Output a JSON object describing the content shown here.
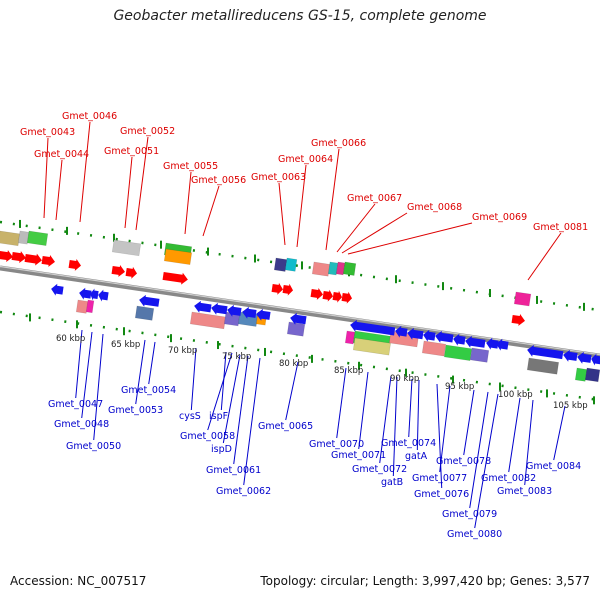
{
  "title": "Geobacter metallireducens GS-15, complete genome",
  "accession": "Accession: NC_007517",
  "summary": "Topology: circular; Length: 3,997,420 bp; Genes: 3,577",
  "colors": {
    "label_top": "#dd0000",
    "label_bottom": "#0000cc",
    "forward_arrow": "#ff0000",
    "reverse_arrow": "#1515ee",
    "backbone": "#888888",
    "tick": "#118811"
  },
  "ticks": [
    "60 kbp",
    "65 kbp",
    "70 kbp",
    "75 kbp",
    "80 kbp",
    "85 kbp",
    "90 kbp",
    "95 kbp",
    "100 kbp",
    "105 kbp"
  ],
  "top_labels": [
    "Gmet_0043",
    "Gmet_0044",
    "Gmet_0046",
    "Gmet_0051",
    "Gmet_0052",
    "Gmet_0055",
    "Gmet_0056",
    "Gmet_0063",
    "Gmet_0064",
    "Gmet_0066",
    "Gmet_0067",
    "Gmet_0068",
    "Gmet_0069",
    "Gmet_0081"
  ],
  "bottom_labels": [
    "Gmet_0047",
    "Gmet_0048",
    "Gmet_0050",
    "Gmet_0053",
    "Gmet_0054",
    "cysS",
    "ispF",
    "Gmet_0058",
    "ispD",
    "Gmet_0061",
    "Gmet_0062",
    "Gmet_0065",
    "Gmet_0070",
    "Gmet_0071",
    "Gmet_0072",
    "gatB",
    "Gmet_0074",
    "gatA",
    "Gmet_0076",
    "Gmet_0077",
    "Gmet_0078",
    "Gmet_0079",
    "Gmet_0080",
    "Gmet_0082",
    "Gmet_0083",
    "Gmet_0084"
  ]
}
